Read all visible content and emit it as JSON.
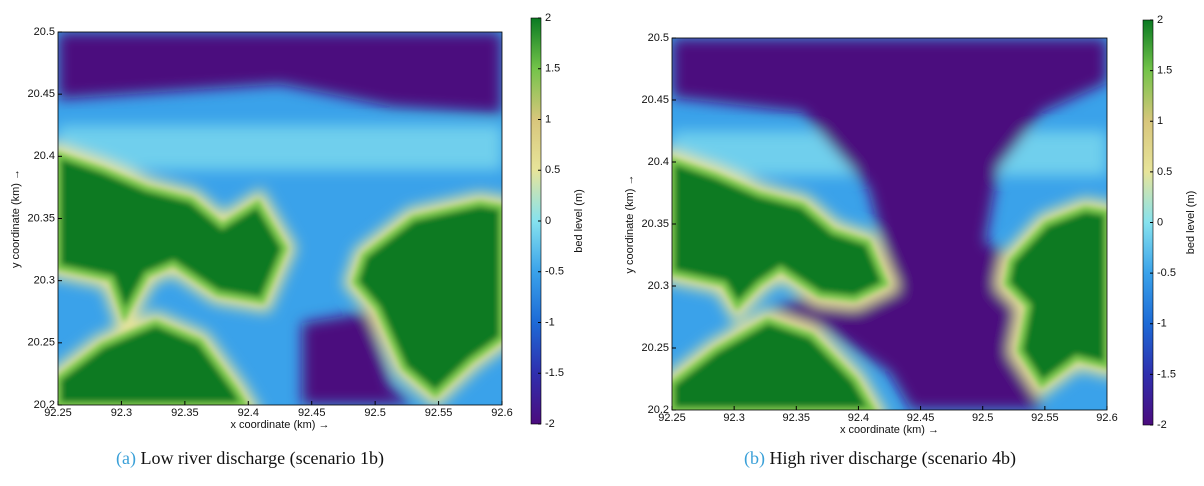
{
  "chart_data": [
    {
      "type": "heatmap",
      "caption_label": "(a)",
      "caption": "Low river discharge (scenario 1b)",
      "xlabel": "x coordinate (km) →",
      "ylabel": "y coordinate (km) →",
      "colorbar_label": "bed level (m)",
      "xlim": [
        92.25,
        92.6
      ],
      "xticks": [
        92.25,
        92.3,
        92.35,
        92.4,
        92.45,
        92.5,
        92.55,
        92.6
      ],
      "ylim": [
        20.2,
        20.5
      ],
      "yticks": [
        20.2,
        20.25,
        20.3,
        20.35,
        20.4,
        20.45,
        20.5
      ],
      "clim": [
        -2,
        2
      ],
      "cticks": [
        -2,
        -1.5,
        -1,
        -0.5,
        0,
        0.5,
        1,
        1.5,
        2
      ],
      "colormap": [
        "#4b0c7e",
        "#2f2fae",
        "#1d6ad6",
        "#3aa2ea",
        "#86e2ee",
        "#e7e49a",
        "#d8c67c",
        "#74c44a",
        "#0a7a22"
      ]
    },
    {
      "type": "heatmap",
      "caption_label": "(b)",
      "caption": "High river discharge (scenario 4b)",
      "xlabel": "x coordinate (km) →",
      "ylabel": "y coordinate (km) →",
      "colorbar_label": "bed level (m)",
      "xlim": [
        92.25,
        92.6
      ],
      "xticks": [
        92.25,
        92.3,
        92.35,
        92.4,
        92.45,
        92.5,
        92.55,
        92.6
      ],
      "ylim": [
        20.2,
        20.5
      ],
      "yticks": [
        20.2,
        20.25,
        20.3,
        20.35,
        20.4,
        20.45,
        20.5
      ],
      "clim": [
        -2,
        2
      ],
      "cticks": [
        -2,
        -1.5,
        -1,
        -0.5,
        0,
        0.5,
        1,
        1.5,
        2
      ],
      "colormap": [
        "#4b0c7e",
        "#2f2fae",
        "#1d6ad6",
        "#3aa2ea",
        "#86e2ee",
        "#e7e49a",
        "#d8c67c",
        "#74c44a",
        "#0a7a22"
      ]
    }
  ]
}
